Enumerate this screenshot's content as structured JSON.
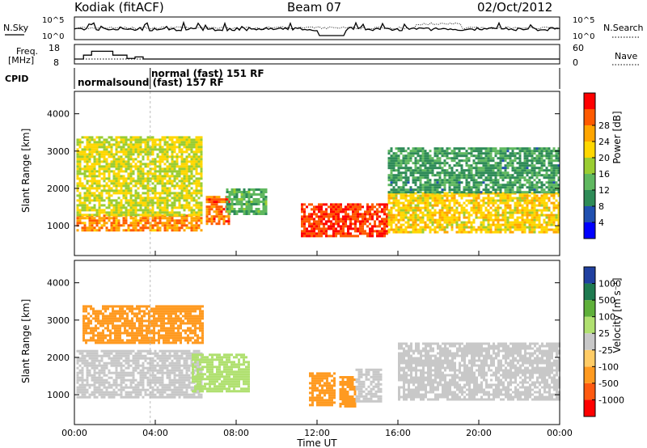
{
  "header": {
    "station": "Kodiak (fitACF)",
    "beam": "Beam 07",
    "date": "02/Oct/2012"
  },
  "summary_panels": {
    "nsky_label": "N.Sky",
    "freq_label_1": "Freq.",
    "freq_label_2": "[MHz]",
    "cpid_label": "CPID",
    "nsearch_label": "N.Search",
    "nave_label": "Nave",
    "noise_left_ticks": [
      "10^5",
      "10^0"
    ],
    "noise_right_ticks": [
      "10^5",
      "10^0"
    ],
    "freq_left_ticks": [
      "18",
      "8"
    ],
    "nave_right_ticks": [
      "60",
      "0"
    ],
    "cpid_text_1": "normalsound (fast) 157 RF",
    "cpid_text_2": "normal (fast) 151 RF",
    "cpid_switch_hour": 3.75,
    "nave_level": 0.25,
    "freq_steps": [
      {
        "start": 0.0,
        "end": 0.45,
        "mhz": 10.5
      },
      {
        "start": 0.45,
        "end": 0.85,
        "mhz": 12.5
      },
      {
        "start": 0.85,
        "end": 1.9,
        "mhz": 14.5
      },
      {
        "start": 1.9,
        "end": 2.6,
        "mhz": 12.5
      },
      {
        "start": 2.6,
        "end": 3.0,
        "mhz": 10.8
      },
      {
        "start": 3.0,
        "end": 3.4,
        "mhz": 11.6
      },
      {
        "start": 3.4,
        "end": 24.0,
        "mhz": 10.5
      }
    ]
  },
  "power_colorbar": {
    "title": "Power [dB]",
    "ticks": [
      "4",
      "8",
      "12",
      "16",
      "20",
      "24",
      "28"
    ],
    "colors": [
      "#0000ff",
      "#2050b0",
      "#2e8b57",
      "#5fb85f",
      "#9acd32",
      "#ffd700",
      "#ffa500",
      "#ff5a00",
      "#ff0000"
    ]
  },
  "velocity_colorbar": {
    "title": "Velocity [m s⁻¹]",
    "ticks": [
      "1000",
      "500",
      "100",
      "25",
      "-25",
      "-100",
      "-500",
      "-1000"
    ],
    "colors": [
      "#2040a0",
      "#1e7a50",
      "#5fb03a",
      "#b0e070",
      "#c8c8c8",
      "#ffcc66",
      "#ff9a20",
      "#ff5a10",
      "#ff0000"
    ]
  },
  "axes": {
    "ylabel": "Slant Range [km]",
    "xlabel": "Time UT",
    "x_ticks": [
      "00:00",
      "04:00",
      "08:00",
      "12:00",
      "16:00",
      "20:00",
      "00:00"
    ],
    "y_ticks": [
      "1000",
      "2000",
      "3000",
      "4000"
    ]
  },
  "chart_data": [
    {
      "type": "heatmap",
      "title": "",
      "xlabel": "Time UT",
      "ylabel": "Slant Range [km]",
      "xlim": [
        0,
        24
      ],
      "ylim": [
        200,
        4600
      ],
      "colorbar": "Power [dB]",
      "features": [
        {
          "t0": 0.1,
          "t1": 6.3,
          "r0": 850,
          "r1": 1300,
          "value": 24
        },
        {
          "t0": 0.1,
          "t1": 6.3,
          "r0": 1300,
          "r1": 3400,
          "value": 18
        },
        {
          "t0": 6.5,
          "t1": 7.7,
          "r0": 1050,
          "r1": 1800,
          "value": 26
        },
        {
          "t0": 7.5,
          "t1": 9.5,
          "r0": 1300,
          "r1": 2000,
          "value": 12
        },
        {
          "t0": 11.2,
          "t1": 15.5,
          "r0": 700,
          "r1": 1600,
          "value": 28
        },
        {
          "t0": 15.5,
          "t1": 24.0,
          "r0": 850,
          "r1": 1900,
          "value": 20
        },
        {
          "t0": 15.5,
          "t1": 24.0,
          "r0": 1900,
          "r1": 3100,
          "value": 10
        }
      ]
    },
    {
      "type": "heatmap",
      "title": "",
      "xlabel": "Time UT",
      "ylabel": "Slant Range [km]",
      "xlim": [
        0,
        24
      ],
      "ylim": [
        200,
        4600
      ],
      "colorbar": "Velocity [m s⁻¹]",
      "features": [
        {
          "t0": 0.1,
          "t1": 6.3,
          "r0": 900,
          "r1": 2200,
          "value": 0
        },
        {
          "t0": 0.4,
          "t1": 6.3,
          "r0": 2400,
          "r1": 3400,
          "value": -200
        },
        {
          "t0": 5.8,
          "t1": 8.6,
          "r0": 1100,
          "r1": 2100,
          "value": 60
        },
        {
          "t0": 11.6,
          "t1": 12.9,
          "r0": 700,
          "r1": 1600,
          "value": -300
        },
        {
          "t0": 13.1,
          "t1": 13.9,
          "r0": 700,
          "r1": 1500,
          "value": -300
        },
        {
          "t0": 13.9,
          "t1": 15.2,
          "r0": 800,
          "r1": 1700,
          "value": 0
        },
        {
          "t0": 16.0,
          "t1": 24.0,
          "r0": 900,
          "r1": 2400,
          "value": 0
        }
      ]
    }
  ]
}
